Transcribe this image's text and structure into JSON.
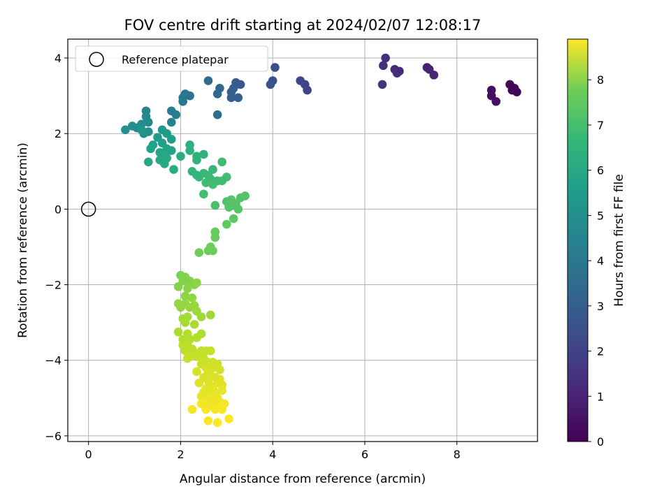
{
  "chart_data": {
    "type": "scatter",
    "title": "FOV centre drift starting at 2024/02/07 12:08:17",
    "xlabel": "Angular distance from reference (arcmin)",
    "ylabel": "Rotation from reference (arcmin)",
    "xlim": [
      -0.45,
      9.75
    ],
    "ylim": [
      -6.15,
      4.5
    ],
    "xticks": [
      0,
      2,
      4,
      6,
      8
    ],
    "yticks": [
      -6,
      -4,
      -2,
      0,
      2,
      4
    ],
    "grid": true,
    "colormap": "viridis",
    "colorbar": {
      "label": "Hours from first FF file",
      "range": [
        0,
        8.9
      ],
      "ticks": [
        0,
        1,
        2,
        3,
        4,
        5,
        6,
        7,
        8
      ]
    },
    "legend": {
      "position": "top-left",
      "entries": [
        {
          "label": "Reference platepar",
          "marker": "open-circle"
        }
      ]
    },
    "reference_point": {
      "x": 0,
      "y": 0
    },
    "points": [
      [
        9.2,
        3.15,
        0.1
      ],
      [
        9.3,
        3.1,
        0.15
      ],
      [
        9.15,
        3.3,
        0.2
      ],
      [
        9.25,
        3.2,
        0.1
      ],
      [
        8.75,
        3.0,
        0.3
      ],
      [
        8.75,
        3.15,
        0.35
      ],
      [
        8.85,
        2.85,
        0.4
      ],
      [
        7.35,
        3.75,
        0.8
      ],
      [
        7.4,
        3.7,
        0.85
      ],
      [
        7.5,
        3.55,
        0.9
      ],
      [
        6.75,
        3.65,
        1.0
      ],
      [
        6.65,
        3.7,
        1.05
      ],
      [
        6.7,
        3.6,
        1.1
      ],
      [
        6.45,
        4.0,
        1.2
      ],
      [
        6.4,
        3.8,
        1.25
      ],
      [
        6.38,
        3.3,
        1.35
      ],
      [
        4.75,
        3.15,
        1.8
      ],
      [
        4.7,
        3.3,
        1.85
      ],
      [
        4.6,
        3.4,
        1.9
      ],
      [
        4.05,
        3.75,
        2.1
      ],
      [
        4.0,
        3.4,
        2.15
      ],
      [
        3.95,
        3.3,
        2.2
      ],
      [
        3.3,
        3.3,
        2.5
      ],
      [
        3.2,
        3.35,
        2.55
      ],
      [
        3.1,
        3.1,
        2.6
      ],
      [
        3.1,
        2.95,
        2.65
      ],
      [
        3.25,
        2.95,
        2.7
      ],
      [
        3.15,
        3.2,
        2.7
      ],
      [
        2.85,
        3.2,
        2.9
      ],
      [
        2.8,
        3.05,
        3.0
      ],
      [
        2.8,
        2.5,
        3.1
      ],
      [
        2.6,
        3.4,
        3.1
      ],
      [
        2.2,
        3.0,
        3.4
      ],
      [
        2.1,
        3.05,
        3.45
      ],
      [
        2.05,
        2.85,
        3.5
      ],
      [
        2.05,
        2.95,
        3.55
      ],
      [
        1.8,
        2.6,
        3.8
      ],
      [
        1.9,
        2.5,
        3.85
      ],
      [
        1.8,
        2.3,
        3.9
      ],
      [
        1.25,
        2.6,
        4.1
      ],
      [
        1.25,
        2.45,
        4.15
      ],
      [
        1.3,
        2.3,
        4.2
      ],
      [
        1.15,
        2.25,
        4.3
      ],
      [
        1.05,
        2.15,
        4.35
      ],
      [
        0.95,
        2.2,
        4.4
      ],
      [
        0.8,
        2.1,
        4.45
      ],
      [
        1.2,
        2.0,
        4.5
      ],
      [
        1.3,
        2.05,
        4.5
      ],
      [
        1.15,
        2.1,
        4.6
      ],
      [
        1.6,
        2.1,
        4.8
      ],
      [
        1.7,
        2.0,
        4.85
      ],
      [
        1.5,
        1.9,
        4.9
      ],
      [
        1.8,
        1.85,
        4.95
      ],
      [
        1.6,
        1.75,
        5.0
      ],
      [
        1.4,
        1.7,
        5.05
      ],
      [
        1.35,
        1.6,
        5.1
      ],
      [
        1.7,
        1.6,
        5.1
      ],
      [
        1.8,
        1.55,
        5.15
      ],
      [
        1.55,
        1.5,
        5.2
      ],
      [
        1.65,
        1.45,
        5.25
      ],
      [
        1.7,
        1.35,
        5.3
      ],
      [
        1.55,
        1.3,
        5.35
      ],
      [
        1.65,
        1.2,
        5.4
      ],
      [
        1.3,
        1.25,
        5.3
      ],
      [
        1.85,
        1.05,
        5.45
      ],
      [
        2.0,
        1.4,
        5.55
      ],
      [
        2.2,
        1.7,
        5.6
      ],
      [
        2.2,
        1.55,
        5.65
      ],
      [
        2.35,
        1.4,
        5.7
      ],
      [
        2.5,
        1.45,
        5.75
      ],
      [
        2.35,
        1.3,
        5.75
      ],
      [
        2.25,
        1.0,
        5.85
      ],
      [
        2.35,
        0.9,
        5.9
      ],
      [
        2.4,
        0.85,
        5.9
      ],
      [
        2.5,
        0.95,
        5.95
      ],
      [
        2.6,
        0.9,
        6.0
      ],
      [
        2.7,
        1.05,
        6.0
      ],
      [
        2.65,
        0.8,
        6.05
      ],
      [
        2.55,
        0.7,
        6.1
      ],
      [
        2.8,
        0.75,
        6.1
      ],
      [
        2.9,
        0.75,
        6.15
      ],
      [
        3.0,
        0.85,
        6.15
      ],
      [
        2.9,
        1.25,
        6.1
      ],
      [
        2.7,
        0.65,
        6.2
      ],
      [
        2.5,
        0.4,
        6.2
      ],
      [
        2.75,
        0.1,
        6.3
      ],
      [
        3.0,
        0.2,
        6.4
      ],
      [
        3.05,
        0.05,
        6.45
      ],
      [
        3.15,
        0.1,
        6.5
      ],
      [
        3.25,
        0.0,
        6.5
      ],
      [
        3.3,
        0.3,
        6.45
      ],
      [
        3.4,
        0.35,
        6.5
      ],
      [
        3.1,
        0.25,
        6.5
      ],
      [
        3.2,
        0.15,
        6.5
      ],
      [
        3.15,
        -0.25,
        6.6
      ],
      [
        3.0,
        -0.4,
        6.65
      ],
      [
        2.75,
        -0.6,
        6.75
      ],
      [
        2.75,
        -0.75,
        6.8
      ],
      [
        2.65,
        -1.0,
        6.85
      ],
      [
        2.7,
        -1.1,
        6.9
      ],
      [
        2.6,
        -1.1,
        6.9
      ],
      [
        2.4,
        -1.15,
        6.95
      ],
      [
        2.0,
        -1.75,
        7.1
      ],
      [
        2.1,
        -1.8,
        7.15
      ],
      [
        2.05,
        -1.9,
        7.2
      ],
      [
        2.2,
        -1.9,
        7.2
      ],
      [
        2.3,
        -2.0,
        7.25
      ],
      [
        2.35,
        -1.95,
        7.3
      ],
      [
        1.95,
        -2.05,
        7.25
      ],
      [
        2.15,
        -2.1,
        7.3
      ],
      [
        2.1,
        -2.3,
        7.35
      ],
      [
        2.25,
        -2.35,
        7.4
      ],
      [
        2.1,
        -2.5,
        7.45
      ],
      [
        1.95,
        -2.5,
        7.45
      ],
      [
        2.0,
        -2.6,
        7.5
      ],
      [
        2.2,
        -2.6,
        7.5
      ],
      [
        2.3,
        -2.55,
        7.5
      ],
      [
        2.35,
        -2.7,
        7.55
      ],
      [
        2.45,
        -2.85,
        7.6
      ],
      [
        2.65,
        -2.8,
        7.6
      ],
      [
        2.05,
        -2.9,
        7.65
      ],
      [
        2.15,
        -2.85,
        7.7
      ],
      [
        2.1,
        -3.0,
        7.7
      ],
      [
        2.3,
        -3.05,
        7.75
      ],
      [
        2.45,
        -3.3,
        7.8
      ],
      [
        1.95,
        -3.25,
        7.8
      ],
      [
        2.15,
        -3.3,
        7.85
      ],
      [
        2.05,
        -3.45,
        7.9
      ],
      [
        2.2,
        -3.45,
        7.9
      ],
      [
        2.35,
        -3.4,
        7.9
      ],
      [
        2.15,
        -3.6,
        7.95
      ],
      [
        2.05,
        -3.6,
        8.0
      ],
      [
        2.25,
        -3.7,
        8.0
      ],
      [
        2.1,
        -3.75,
        8.0
      ],
      [
        2.3,
        -3.8,
        8.05
      ],
      [
        2.45,
        -3.75,
        8.05
      ],
      [
        2.55,
        -3.75,
        8.1
      ],
      [
        2.65,
        -3.75,
        8.1
      ],
      [
        2.2,
        -3.9,
        8.1
      ],
      [
        2.35,
        -3.9,
        8.1
      ],
      [
        2.15,
        -3.95,
        8.15
      ],
      [
        2.5,
        -3.95,
        8.15
      ],
      [
        2.45,
        -4.1,
        8.2
      ],
      [
        2.6,
        -4.05,
        8.2
      ],
      [
        2.7,
        -4.05,
        8.25
      ],
      [
        2.8,
        -4.1,
        8.25
      ],
      [
        2.55,
        -4.2,
        8.3
      ],
      [
        2.7,
        -4.2,
        8.3
      ],
      [
        2.85,
        -4.25,
        8.3
      ],
      [
        2.35,
        -4.3,
        8.3
      ],
      [
        2.6,
        -4.3,
        8.35
      ],
      [
        2.5,
        -4.45,
        8.4
      ],
      [
        2.65,
        -4.4,
        8.4
      ],
      [
        2.75,
        -4.45,
        8.4
      ],
      [
        2.85,
        -4.5,
        8.45
      ],
      [
        2.6,
        -4.55,
        8.45
      ],
      [
        2.4,
        -4.6,
        8.45
      ],
      [
        2.8,
        -4.6,
        8.5
      ],
      [
        2.9,
        -4.65,
        8.5
      ],
      [
        2.55,
        -4.75,
        8.5
      ],
      [
        2.7,
        -4.7,
        8.55
      ],
      [
        2.65,
        -4.8,
        8.55
      ],
      [
        2.5,
        -4.85,
        8.55
      ],
      [
        2.75,
        -4.85,
        8.6
      ],
      [
        2.45,
        -4.95,
        8.6
      ],
      [
        2.9,
        -4.8,
        8.6
      ],
      [
        2.6,
        -5.0,
        8.65
      ],
      [
        2.7,
        -5.05,
        8.65
      ],
      [
        2.8,
        -5.0,
        8.65
      ],
      [
        2.85,
        -5.1,
        8.7
      ],
      [
        2.75,
        -5.15,
        8.7
      ],
      [
        2.55,
        -5.1,
        8.7
      ],
      [
        2.95,
        -5.15,
        8.75
      ],
      [
        2.45,
        -5.15,
        8.75
      ],
      [
        2.65,
        -5.2,
        8.75
      ],
      [
        2.85,
        -5.25,
        8.8
      ],
      [
        2.75,
        -5.3,
        8.8
      ],
      [
        2.25,
        -5.3,
        8.8
      ],
      [
        2.55,
        -5.3,
        8.8
      ],
      [
        2.9,
        -5.3,
        8.85
      ],
      [
        2.6,
        -5.6,
        8.85
      ],
      [
        2.8,
        -5.65,
        8.9
      ],
      [
        3.05,
        -5.55,
        8.9
      ]
    ]
  }
}
